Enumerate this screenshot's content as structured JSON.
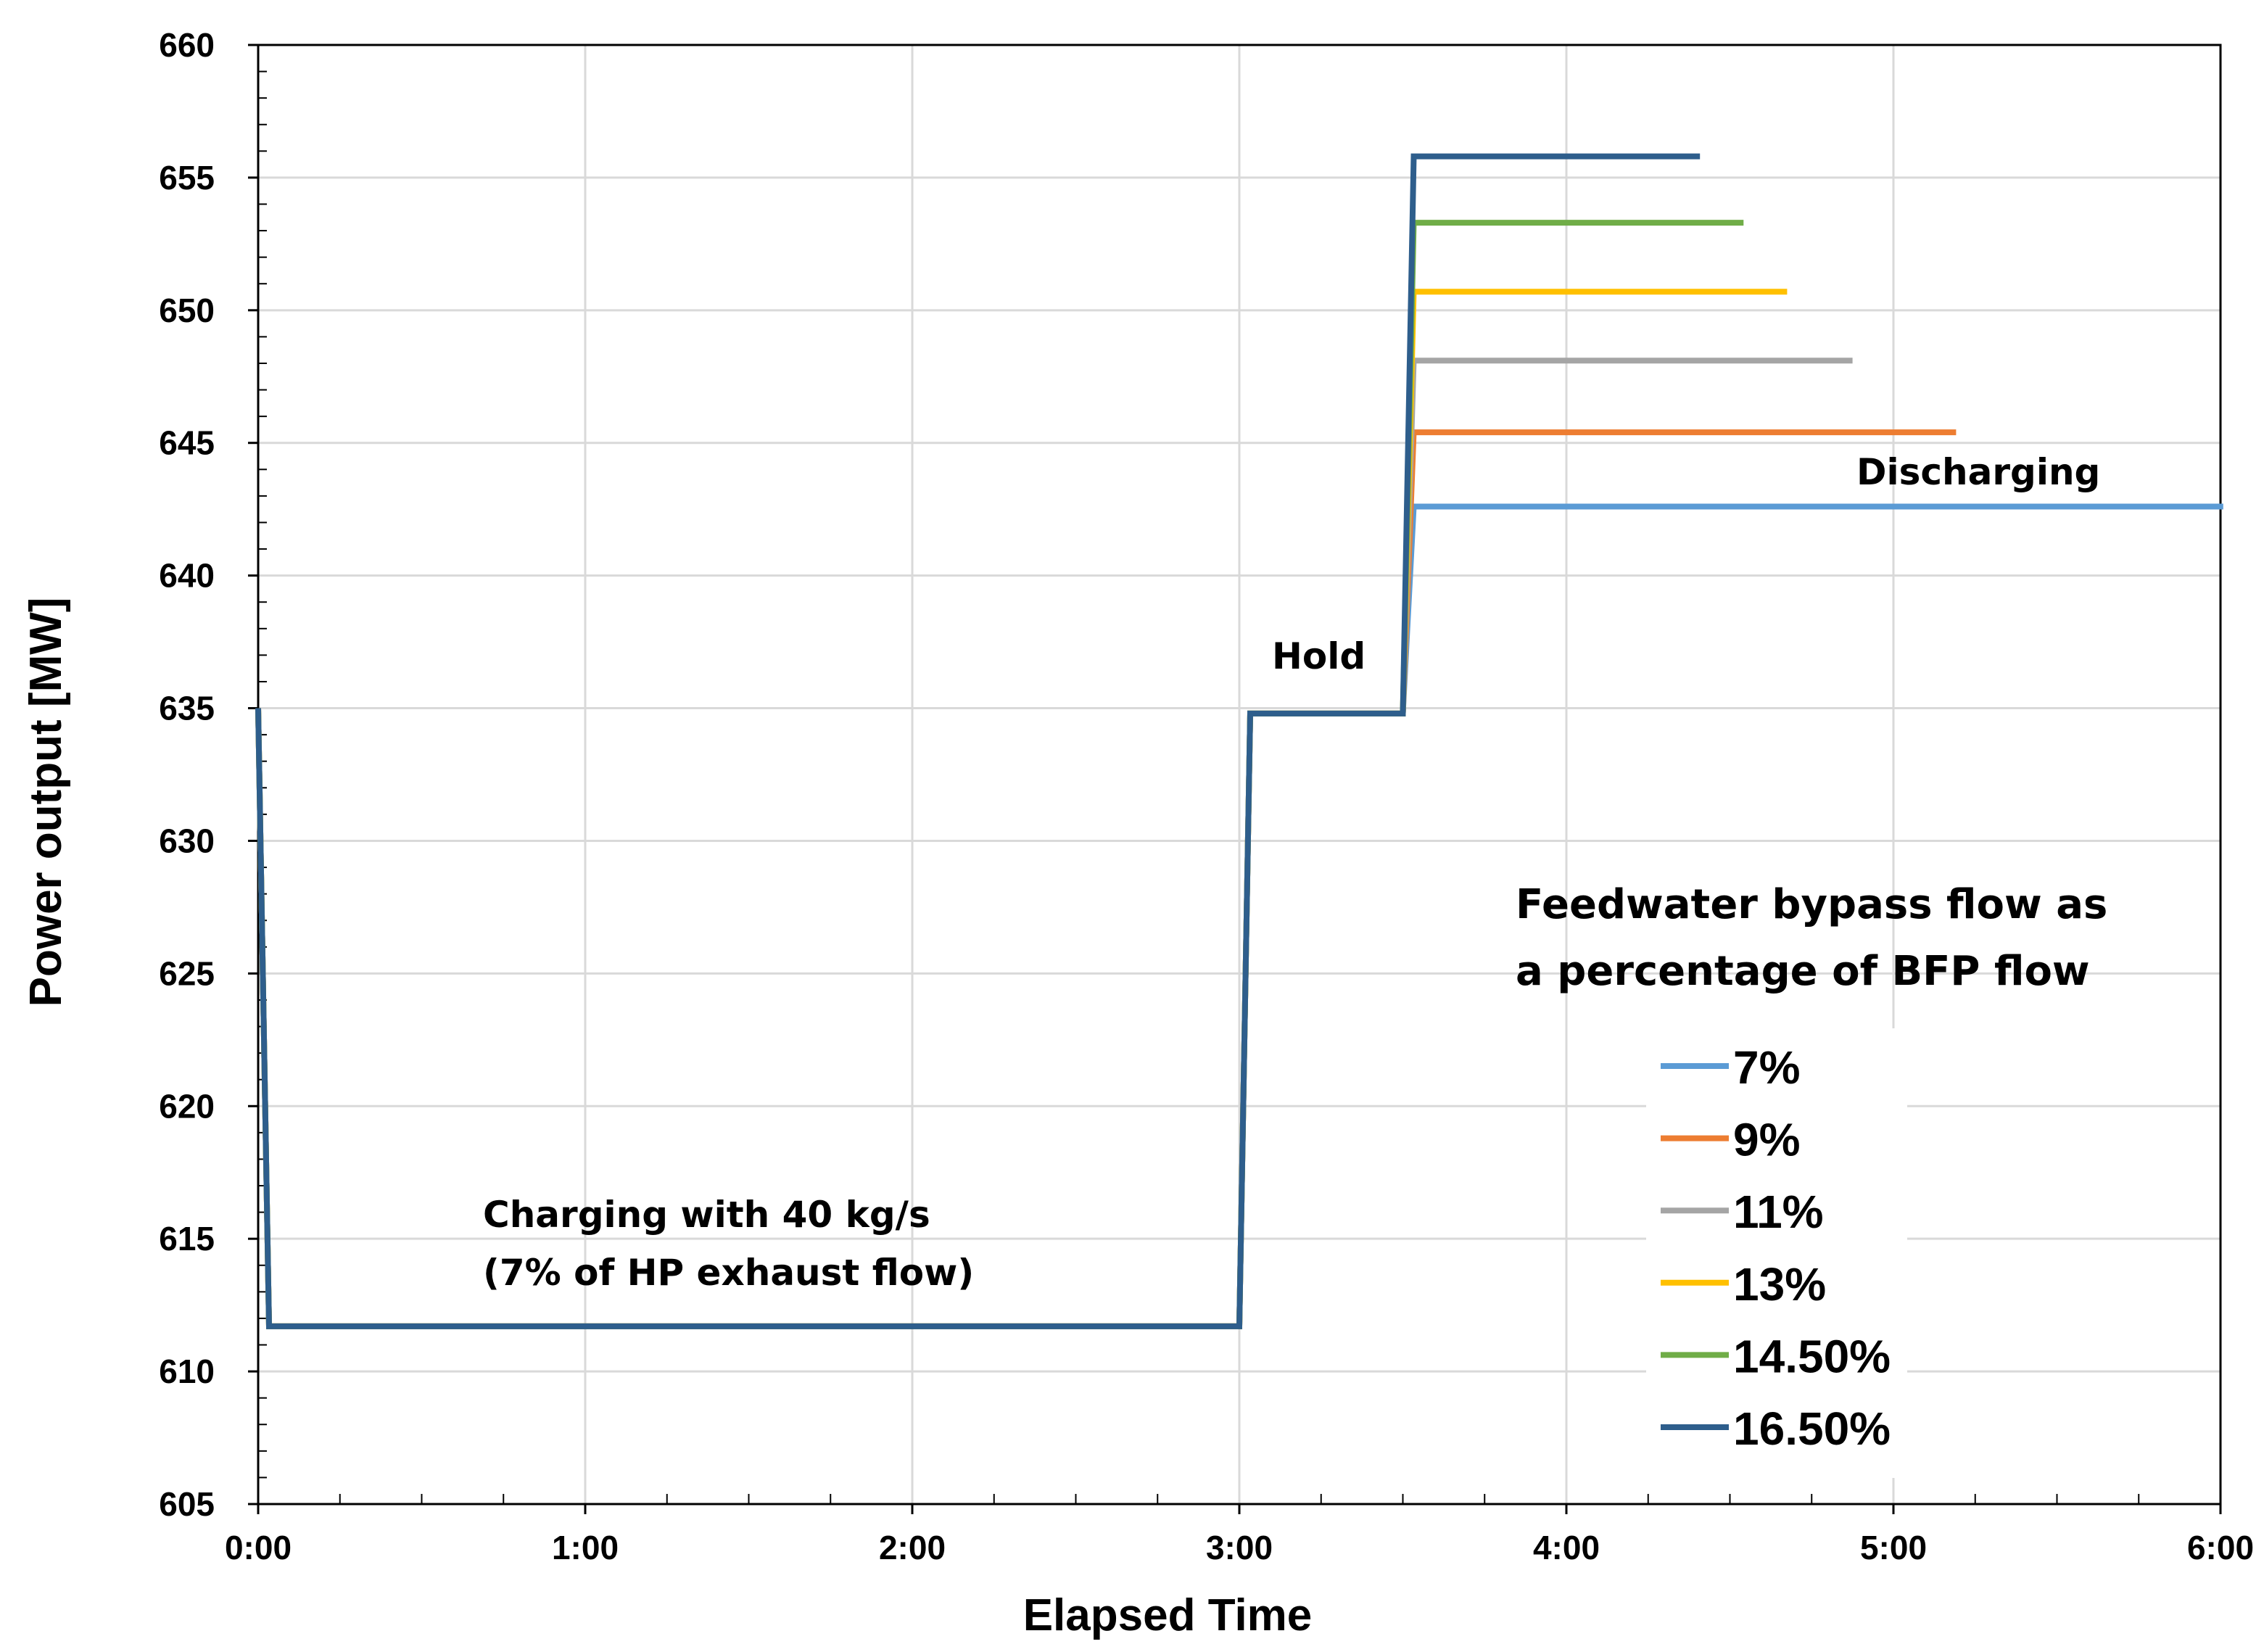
{
  "chart_data": {
    "type": "line",
    "title": "",
    "xlabel": "Elapsed Time",
    "ylabel": "Power output [MW]",
    "xlim": [
      0,
      360
    ],
    "ylim": [
      605,
      660
    ],
    "x_ticks": [
      {
        "value": 0,
        "label": "0:00"
      },
      {
        "value": 60,
        "label": "1:00"
      },
      {
        "value": 120,
        "label": "2:00"
      },
      {
        "value": 180,
        "label": "3:00"
      },
      {
        "value": 240,
        "label": "4:00"
      },
      {
        "value": 300,
        "label": "5:00"
      },
      {
        "value": 360,
        "label": "6:00"
      }
    ],
    "y_ticks": [
      605,
      610,
      615,
      620,
      625,
      630,
      635,
      640,
      645,
      650,
      655,
      660
    ],
    "grid": true,
    "legend_title": [
      "Feedwater bypass flow as",
      "a percentage of BFP flow"
    ],
    "legend_position": "right",
    "annotations": [
      {
        "id": "charging",
        "lines": [
          "Charging with 40 kg/s",
          "(7% of HP exhaust flow)"
        ]
      },
      {
        "id": "hold",
        "lines": [
          "Hold"
        ]
      },
      {
        "id": "discharging",
        "lines": [
          "Discharging"
        ]
      }
    ],
    "series": [
      {
        "name": "7%",
        "color": "#5B9BD5",
        "x": [
          0,
          2,
          180,
          182,
          210,
          212,
          360.5
        ],
        "y": [
          635,
          611.7,
          611.7,
          634.8,
          634.8,
          642.6,
          642.6
        ]
      },
      {
        "name": "9%",
        "color": "#ED7D31",
        "x": [
          0,
          2,
          180,
          182,
          210,
          212,
          311.5
        ],
        "y": [
          635,
          611.7,
          611.7,
          634.8,
          634.8,
          645.4,
          645.4
        ]
      },
      {
        "name": "11%",
        "color": "#A5A5A5",
        "x": [
          0,
          2,
          180,
          182,
          210,
          212,
          292.5
        ],
        "y": [
          635,
          611.7,
          611.7,
          634.8,
          634.8,
          648.1,
          648.1
        ]
      },
      {
        "name": "13%",
        "color": "#FFC000",
        "x": [
          0,
          2,
          180,
          182,
          210,
          212,
          280.5
        ],
        "y": [
          635,
          611.7,
          611.7,
          634.8,
          634.8,
          650.7,
          650.7
        ]
      },
      {
        "name": "14.50%",
        "color": "#70AD47",
        "x": [
          0,
          2,
          180,
          182,
          210,
          212,
          272.5
        ],
        "y": [
          635,
          611.7,
          611.7,
          634.8,
          634.8,
          653.3,
          653.3
        ]
      },
      {
        "name": "16.50%",
        "color": "#2E5E8C",
        "x": [
          0,
          2,
          180,
          182,
          210,
          212,
          264.5
        ],
        "y": [
          635,
          611.7,
          611.7,
          634.8,
          634.8,
          655.8,
          655.8
        ]
      }
    ]
  }
}
